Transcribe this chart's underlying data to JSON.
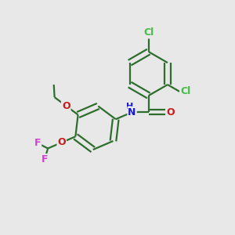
{
  "bg_color": "#e8e8e8",
  "bond_color": "#2d6e2d",
  "line_width": 1.6,
  "font_size": 9,
  "atom_colors": {
    "Cl": "#44bb44",
    "N": "#1a1acc",
    "O": "#cc1a1a",
    "F": "#cc44cc",
    "C": "#2d6e2d"
  },
  "fig_size": [
    3.0,
    3.0
  ],
  "dpi": 100
}
